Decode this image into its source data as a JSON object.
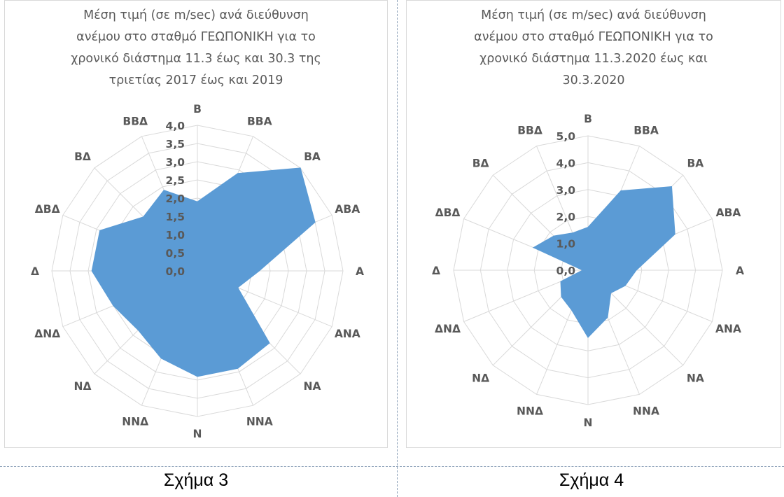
{
  "chart_data": [
    {
      "type": "radar",
      "title_lines": [
        "Μέση τιμή (σε m/sec) ανά διεύθυνση",
        "ανέμου στο σταθμό ΓΕΩΠΟΝΙΚΗ   για το",
        "χρονικό διάστημα 11.3 έως και 30.3 της",
        "τριετίας 2017 έως και 2019"
      ],
      "categories": [
        "Β",
        "ΒΒΑ",
        "ΒΑ",
        "ΑΒΑ",
        "Α",
        "ΑΝΑ",
        "ΝΑ",
        "ΝΝΑ",
        "Ν",
        "ΝΝΔ",
        "ΝΔ",
        "ΔΝΔ",
        "Δ",
        "ΔΒΔ",
        "ΒΔ",
        "ΒΒΔ"
      ],
      "values": [
        1.9,
        2.9,
        4.0,
        3.5,
        1.7,
        1.2,
        2.8,
        2.9,
        2.9,
        2.6,
        2.3,
        2.5,
        2.9,
        2.9,
        2.1,
        2.4
      ],
      "tick_labels": [
        "0,0",
        "0,5",
        "1,0",
        "1,5",
        "2,0",
        "2,5",
        "3,0",
        "3,5",
        "4,0"
      ],
      "rmax": 4.0,
      "color": "#5b9bd5",
      "grid": true
    },
    {
      "type": "radar",
      "title_lines": [
        "Μέση τιμή (σε m/sec) ανά διεύθυνση",
        "ανέμου στο σταθμό ΓΕΩΠΟΝΙΚΗ   για το",
        "χρονικό διάστημα 11.3.2020 έως και",
        "30.3.2020"
      ],
      "categories": [
        "Β",
        "ΒΒΑ",
        "ΒΑ",
        "ΑΒΑ",
        "Α",
        "ΑΝΑ",
        "ΝΑ",
        "ΝΝΑ",
        "Ν",
        "ΝΝΔ",
        "ΝΔ",
        "ΔΝΔ",
        "Δ",
        "ΔΒΔ",
        "ΒΔ",
        "ΒΒΔ"
      ],
      "values": [
        1.6,
        3.2,
        4.4,
        3.5,
        1.8,
        1.5,
        1.2,
        1.9,
        2.5,
        1.6,
        1.4,
        1.1,
        0.2,
        2.2,
        1.8,
        1.5
      ],
      "tick_labels": [
        "0,0",
        "1,0",
        "2,0",
        "3,0",
        "4,0",
        "5,0"
      ],
      "rmax": 5.0,
      "color": "#5b9bd5",
      "grid": true
    }
  ],
  "captions": [
    "Σχήμα 3",
    "Σχήμα 4"
  ]
}
